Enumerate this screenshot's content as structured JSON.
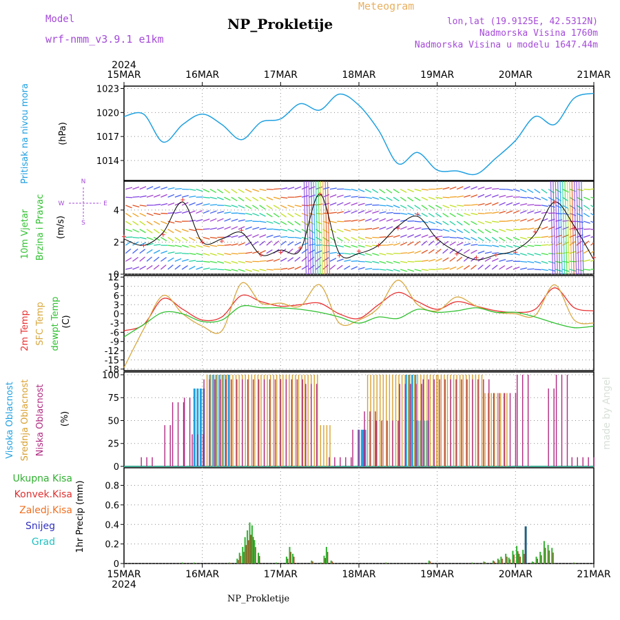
{
  "header": {
    "model_label": "Model",
    "model_name": "wrf-nmm_v3.9.1 e1km",
    "title": "NP_Prokletije",
    "meteogram": "Meteogram",
    "lonlat": "lon,lat (19.9125E, 42.5312N)",
    "altitude": "Nadmorska Visina 1760m",
    "model_altitude": "Nadmorska Visina u modelu 1647.44m",
    "footer": "NP_Prokletije",
    "credit": "made by Angel"
  },
  "colors": {
    "pressure": "#1fa0e0",
    "temp2m": "#e83030",
    "sfc": "#d8a840",
    "dewpt": "#30c030",
    "high_cloud": "#20a0e0",
    "mid_cloud": "#d8a030",
    "low_cloud": "#b02880",
    "rain_total": "#30b030",
    "rain_conv": "#e03030",
    "freezing": "#f07020",
    "snow": "#3030c0",
    "hail": "#20c0c0",
    "purple": "#a44ad8"
  },
  "chart_data": [
    {
      "type": "line",
      "panel": "pressure",
      "ylabel_left": "Pritisak na nivou mora",
      "ylabel": "(hPa)",
      "ylim": [
        1011.5,
        1023.3
      ],
      "yticks": [
        "1023",
        "1020",
        "1017",
        "1014"
      ],
      "ytick_values": [
        1023,
        1020,
        1017,
        1014
      ],
      "x_days": [
        0,
        0.25,
        0.5,
        0.75,
        1.0,
        1.25,
        1.5,
        1.75,
        2.0,
        2.25,
        2.5,
        2.75,
        3.0,
        3.25,
        3.5,
        3.75,
        4.0,
        4.25,
        4.5,
        4.75,
        5.0,
        5.25,
        5.5,
        5.75,
        6.0
      ],
      "series": [
        {
          "name": "Pritisak na nivou mora",
          "values": [
            1019.5,
            1019.8,
            1016.3,
            1018.5,
            1019.8,
            1018.5,
            1016.6,
            1018.8,
            1019.2,
            1021.1,
            1020.3,
            1022.3,
            1020.9,
            1017.8,
            1013.6,
            1015.0,
            1012.8,
            1012.7,
            1012.3,
            1014.3,
            1016.5,
            1019.5,
            1018.5,
            1021.8,
            1022.4
          ]
        }
      ]
    },
    {
      "type": "scatter",
      "panel": "wind",
      "ylabel_left": [
        "10m Vjetar",
        "Brzina i Pravac"
      ],
      "ylabel": "(m/s)",
      "compass": [
        "N",
        "E",
        "S",
        "W"
      ],
      "ylim": [
        0,
        5.8
      ],
      "yticks": [
        "4",
        "2",
        "0"
      ],
      "ytick_values": [
        4,
        2,
        0
      ],
      "x_days": [
        0,
        0.25,
        0.5,
        0.75,
        1.0,
        1.25,
        1.5,
        1.75,
        2.0,
        2.25,
        2.5,
        2.75,
        3.0,
        3.25,
        3.5,
        3.75,
        4.0,
        4.25,
        4.5,
        4.75,
        5.0,
        5.25,
        5.5,
        5.75,
        6.0
      ],
      "series": [
        {
          "name": "wind speed",
          "values": [
            2.2,
            1.8,
            2.6,
            4.5,
            2.0,
            2.2,
            2.6,
            1.2,
            1.5,
            1.5,
            5.0,
            1.3,
            1.3,
            1.8,
            3.0,
            3.6,
            2.2,
            1.4,
            0.9,
            1.2,
            1.5,
            2.5,
            4.5,
            3.0,
            0.9
          ]
        }
      ],
      "arrow_levels": [
        0.3,
        0.8,
        1.3,
        1.8,
        2.3,
        2.8,
        3.3,
        3.8,
        4.3,
        4.8,
        5.3
      ]
    },
    {
      "type": "line",
      "panel": "temperature",
      "ylabel_left": [
        "2m Temp",
        "SFC Temp",
        "dewpt Temp"
      ],
      "ylabel": "(C)",
      "ylim": [
        -18.5,
        12.5
      ],
      "yticks": [
        "12",
        "9",
        "6",
        "3",
        "0",
        "-3",
        "-6",
        "-9",
        "-12",
        "-15",
        "-18"
      ],
      "ytick_values": [
        12,
        9,
        6,
        3,
        0,
        -3,
        -6,
        -9,
        -12,
        -15,
        -18
      ],
      "x_days": [
        0,
        0.25,
        0.5,
        0.75,
        1.0,
        1.25,
        1.5,
        1.75,
        2.0,
        2.25,
        2.5,
        2.75,
        3.0,
        3.25,
        3.5,
        3.75,
        4.0,
        4.25,
        4.5,
        4.75,
        5.0,
        5.25,
        5.5,
        5.75,
        6.0
      ],
      "series": [
        {
          "name": "2m Temp",
          "values": [
            -5.5,
            -3.5,
            5.0,
            1.5,
            -2.0,
            -1.0,
            6.0,
            4.0,
            2.5,
            3.0,
            3.5,
            0.0,
            -1.5,
            3.0,
            7.0,
            4.0,
            1.5,
            4.0,
            2.5,
            1.0,
            0.5,
            1.5,
            8.5,
            2.0,
            1.0
          ]
        },
        {
          "name": "SFC Temp",
          "values": [
            -17.5,
            -5.0,
            6.0,
            0.0,
            -4.0,
            -5.5,
            10.0,
            3.5,
            3.5,
            2.5,
            9.5,
            -3.0,
            -2.0,
            2.0,
            11.0,
            3.0,
            1.0,
            5.5,
            2.5,
            0.5,
            0.0,
            -0.5,
            9.5,
            -2.0,
            -3.0
          ]
        },
        {
          "name": "dewpt Temp",
          "values": [
            -7.5,
            -3.5,
            0.5,
            0.0,
            -2.5,
            -2.0,
            2.5,
            2.0,
            2.0,
            1.5,
            0.5,
            -1.0,
            -3.0,
            -1.0,
            -1.5,
            1.5,
            0.5,
            1.0,
            2.0,
            0.5,
            0.5,
            -1.0,
            -3.0,
            -4.5,
            -4.0
          ]
        }
      ]
    },
    {
      "type": "bar",
      "panel": "clouds",
      "ylabel_left": [
        "Visoka Oblacnost",
        "Srednja Oblacnost",
        "Niska Oblacnost"
      ],
      "ylabel": "(%)",
      "ylim": [
        0,
        103
      ],
      "yticks": [
        "100",
        "75",
        "50",
        "25",
        "0"
      ],
      "ytick_values": [
        100,
        75,
        50,
        25,
        0
      ],
      "series": [
        {
          "name": "Visoka Oblacnost",
          "segments": [
            [
              0.9,
              1.05,
              85
            ],
            [
              1.1,
              1.35,
              100
            ],
            [
              3.0,
              3.1,
              40
            ],
            [
              3.6,
              3.75,
              100
            ],
            [
              3.75,
              3.9,
              50
            ]
          ]
        },
        {
          "name": "Srednja Oblacnost",
          "segments": [
            [
              1.05,
              1.3,
              100
            ],
            [
              1.3,
              2.3,
              100
            ],
            [
              2.3,
              2.5,
              100
            ],
            [
              2.5,
              2.65,
              45
            ],
            [
              3.1,
              4.0,
              100
            ],
            [
              4.0,
              4.6,
              100
            ],
            [
              4.6,
              4.9,
              80
            ]
          ]
        },
        {
          "name": "Niska Oblacnost",
          "segments": [
            [
              0.2,
              0.4,
              10
            ],
            [
              0.5,
              0.6,
              45
            ],
            [
              0.6,
              0.75,
              70
            ],
            [
              0.75,
              0.85,
              75
            ],
            [
              0.85,
              1.0,
              35
            ],
            [
              1.0,
              2.3,
              95
            ],
            [
              2.3,
              2.5,
              90
            ],
            [
              2.6,
              2.9,
              10
            ],
            [
              2.9,
              3.05,
              40
            ],
            [
              3.05,
              3.2,
              60
            ],
            [
              3.2,
              3.5,
              50
            ],
            [
              3.5,
              3.8,
              90
            ],
            [
              3.8,
              4.7,
              95
            ],
            [
              4.7,
              5.0,
              80
            ],
            [
              5.0,
              5.2,
              100
            ],
            [
              5.4,
              5.5,
              85
            ],
            [
              5.5,
              5.7,
              100
            ],
            [
              5.7,
              6.0,
              10
            ]
          ]
        }
      ]
    },
    {
      "type": "bar",
      "panel": "precipitation",
      "ylabel_left": [
        "Ukupna Kisa",
        "Konvek.Kisa",
        "Zaledj.Kisa",
        "Snijeg",
        "Grad"
      ],
      "ylabel": "1hr Precip (mm)",
      "ylim": [
        0,
        0.98
      ],
      "yticks": [
        "0.8",
        "0.6",
        "0.4",
        "0.2",
        "0"
      ],
      "ytick_values": [
        0.8,
        0.6,
        0.4,
        0.2,
        0
      ],
      "bars": [
        {
          "x": 0.75,
          "v": 0.01
        },
        {
          "x": 0.9,
          "v": 0.01
        },
        {
          "x": 1.35,
          "v": 0.01
        },
        {
          "x": 1.45,
          "v": 0.05
        },
        {
          "x": 1.48,
          "v": 0.11
        },
        {
          "x": 1.52,
          "v": 0.17
        },
        {
          "x": 1.55,
          "v": 0.27
        },
        {
          "x": 1.58,
          "v": 0.34
        },
        {
          "x": 1.61,
          "v": 0.42
        },
        {
          "x": 1.64,
          "v": 0.39
        },
        {
          "x": 1.67,
          "v": 0.24
        },
        {
          "x": 1.72,
          "v": 0.11
        },
        {
          "x": 1.95,
          "v": 0.01
        },
        {
          "x": 2.08,
          "v": 0.07
        },
        {
          "x": 2.12,
          "v": 0.17
        },
        {
          "x": 2.16,
          "v": 0.1
        },
        {
          "x": 2.4,
          "v": 0.03
        },
        {
          "x": 2.52,
          "v": 0.01
        },
        {
          "x": 2.56,
          "v": 0.08
        },
        {
          "x": 2.59,
          "v": 0.17
        },
        {
          "x": 2.65,
          "v": 0.03
        },
        {
          "x": 3.35,
          "v": 0.01
        },
        {
          "x": 3.9,
          "v": 0.03
        },
        {
          "x": 4.45,
          "v": 0.01
        },
        {
          "x": 4.6,
          "v": 0.02
        },
        {
          "x": 4.72,
          "v": 0.03
        },
        {
          "x": 4.78,
          "v": 0.05
        },
        {
          "x": 4.82,
          "v": 0.07
        },
        {
          "x": 4.88,
          "v": 0.1
        },
        {
          "x": 4.92,
          "v": 0.06
        },
        {
          "x": 4.97,
          "v": 0.13
        },
        {
          "x": 5.02,
          "v": 0.18
        },
        {
          "x": 5.05,
          "v": 0.1
        },
        {
          "x": 5.1,
          "v": 0.14
        },
        {
          "x": 5.13,
          "v": 0.38,
          "snow": true
        },
        {
          "x": 5.22,
          "v": 0.02
        },
        {
          "x": 5.27,
          "v": 0.07
        },
        {
          "x": 5.32,
          "v": 0.12
        },
        {
          "x": 5.37,
          "v": 0.23
        },
        {
          "x": 5.42,
          "v": 0.19
        },
        {
          "x": 5.47,
          "v": 0.16
        },
        {
          "x": 5.75,
          "v": 0.01
        }
      ]
    }
  ],
  "time_axis": {
    "year": "2024",
    "labels": [
      "15MAR",
      "16MAR",
      "17MAR",
      "18MAR",
      "19MAR",
      "20MAR",
      "21MAR"
    ]
  }
}
